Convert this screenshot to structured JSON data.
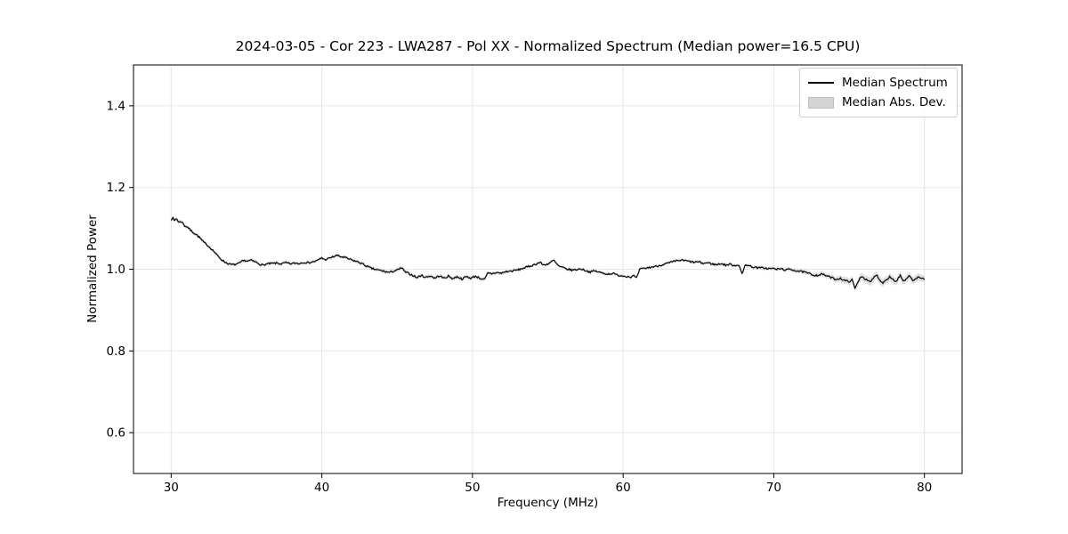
{
  "chart_data": {
    "type": "line",
    "title": "2024-03-05 - Cor 223 - LWA287 - Pol XX - Normalized Spectrum (Median power=16.5 CPU)",
    "xlabel": "Frequency (MHz)",
    "ylabel": "Normalized Power",
    "xlim": [
      27.5,
      82.5
    ],
    "ylim": [
      0.5,
      1.5
    ],
    "xticks": [
      "30",
      "40",
      "50",
      "60",
      "70",
      "80"
    ],
    "yticks": [
      "0.6",
      "0.8",
      "1.0",
      "1.2",
      "1.4"
    ],
    "grid": true,
    "legend": {
      "position": "upper right",
      "entries": [
        {
          "label": "Median Spectrum",
          "type": "line",
          "color": "#000000"
        },
        {
          "label": "Median Abs. Dev.",
          "type": "patch",
          "color": "#d4d4d4"
        }
      ]
    },
    "colors": {
      "line": "#000000",
      "band": "#bbbbbb",
      "grid": "#e6e6e6",
      "spine": "#000000",
      "background": "#ffffff"
    },
    "noise_amplitude": 0.0022,
    "series": [
      {
        "name": "Median Spectrum",
        "style": "line",
        "color": "#000000",
        "points": [
          [
            30.0,
            1.122
          ],
          [
            30.1,
            1.127
          ],
          [
            30.2,
            1.118
          ],
          [
            30.35,
            1.125
          ],
          [
            30.5,
            1.115
          ],
          [
            30.7,
            1.117
          ],
          [
            30.9,
            1.106
          ],
          [
            31.1,
            1.103
          ],
          [
            31.3,
            1.095
          ],
          [
            31.5,
            1.089
          ],
          [
            31.7,
            1.084
          ],
          [
            31.9,
            1.077
          ],
          [
            32.1,
            1.068
          ],
          [
            32.3,
            1.062
          ],
          [
            32.5,
            1.056
          ],
          [
            32.7,
            1.049
          ],
          [
            32.9,
            1.041
          ],
          [
            33.1,
            1.032
          ],
          [
            33.3,
            1.025
          ],
          [
            33.5,
            1.019
          ],
          [
            33.7,
            1.015
          ],
          [
            33.9,
            1.012
          ],
          [
            34.1,
            1.011
          ],
          [
            34.3,
            1.012
          ],
          [
            34.5,
            1.014
          ],
          [
            34.7,
            1.019
          ],
          [
            34.9,
            1.021
          ],
          [
            35.1,
            1.02
          ],
          [
            35.3,
            1.022
          ],
          [
            35.5,
            1.019
          ],
          [
            35.7,
            1.016
          ],
          [
            35.9,
            1.012
          ],
          [
            36.1,
            1.01
          ],
          [
            36.4,
            1.013
          ],
          [
            36.7,
            1.014
          ],
          [
            37.0,
            1.015
          ],
          [
            37.3,
            1.013
          ],
          [
            37.6,
            1.016
          ],
          [
            37.9,
            1.013
          ],
          [
            38.2,
            1.015
          ],
          [
            38.5,
            1.014
          ],
          [
            38.8,
            1.017
          ],
          [
            39.1,
            1.016
          ],
          [
            39.4,
            1.018
          ],
          [
            39.7,
            1.021
          ],
          [
            40.0,
            1.028
          ],
          [
            40.2,
            1.023
          ],
          [
            40.5,
            1.027
          ],
          [
            40.8,
            1.031
          ],
          [
            41.0,
            1.034
          ],
          [
            41.2,
            1.031
          ],
          [
            41.5,
            1.029
          ],
          [
            41.8,
            1.025
          ],
          [
            42.1,
            1.021
          ],
          [
            42.4,
            1.018
          ],
          [
            42.7,
            1.013
          ],
          [
            43.0,
            1.007
          ],
          [
            43.3,
            1.002
          ],
          [
            43.6,
            0.999
          ],
          [
            43.9,
            0.997
          ],
          [
            44.2,
            0.994
          ],
          [
            44.5,
            0.992
          ],
          [
            44.8,
            0.996
          ],
          [
            45.1,
            0.999
          ],
          [
            45.3,
            1.004
          ],
          [
            45.5,
            0.994
          ],
          [
            45.8,
            0.989
          ],
          [
            46.1,
            0.984
          ],
          [
            46.3,
            0.979
          ],
          [
            46.6,
            0.985
          ],
          [
            46.9,
            0.98
          ],
          [
            47.2,
            0.984
          ],
          [
            47.5,
            0.978
          ],
          [
            47.8,
            0.984
          ],
          [
            48.1,
            0.978
          ],
          [
            48.4,
            0.983
          ],
          [
            48.7,
            0.977
          ],
          [
            49.0,
            0.982
          ],
          [
            49.3,
            0.976
          ],
          [
            49.6,
            0.982
          ],
          [
            49.9,
            0.978
          ],
          [
            50.2,
            0.983
          ],
          [
            50.5,
            0.978
          ],
          [
            50.8,
            0.974
          ],
          [
            51.0,
            0.99
          ],
          [
            51.3,
            0.989
          ],
          [
            51.6,
            0.992
          ],
          [
            51.9,
            0.99
          ],
          [
            52.2,
            0.994
          ],
          [
            52.5,
            0.995
          ],
          [
            52.8,
            0.997
          ],
          [
            53.1,
            0.999
          ],
          [
            53.4,
            1.003
          ],
          [
            53.7,
            1.006
          ],
          [
            54.0,
            1.01
          ],
          [
            54.3,
            1.014
          ],
          [
            54.5,
            1.017
          ],
          [
            54.7,
            1.01
          ],
          [
            55.0,
            1.013
          ],
          [
            55.2,
            1.017
          ],
          [
            55.4,
            1.022
          ],
          [
            55.6,
            1.012
          ],
          [
            55.8,
            1.006
          ],
          [
            56.0,
            1.004
          ],
          [
            56.3,
            1.0
          ],
          [
            56.6,
            0.998
          ],
          [
            56.9,
            0.999
          ],
          [
            57.2,
            1.001
          ],
          [
            57.5,
            0.997
          ],
          [
            57.8,
            0.993
          ],
          [
            58.1,
            0.996
          ],
          [
            58.4,
            0.993
          ],
          [
            58.7,
            0.99
          ],
          [
            59.0,
            0.988
          ],
          [
            59.3,
            0.99
          ],
          [
            59.6,
            0.986
          ],
          [
            59.9,
            0.984
          ],
          [
            60.2,
            0.983
          ],
          [
            60.5,
            0.981
          ],
          [
            60.7,
            0.984
          ],
          [
            60.9,
            0.978
          ],
          [
            61.1,
            1.0
          ],
          [
            61.4,
            1.002
          ],
          [
            61.7,
            1.004
          ],
          [
            62.0,
            1.006
          ],
          [
            62.3,
            1.008
          ],
          [
            62.6,
            1.011
          ],
          [
            62.9,
            1.014
          ],
          [
            63.2,
            1.017
          ],
          [
            63.5,
            1.02
          ],
          [
            63.8,
            1.022
          ],
          [
            64.1,
            1.021
          ],
          [
            64.4,
            1.019
          ],
          [
            64.7,
            1.017
          ],
          [
            65.0,
            1.018
          ],
          [
            65.3,
            1.014
          ],
          [
            65.6,
            1.016
          ],
          [
            65.9,
            1.013
          ],
          [
            66.2,
            1.011
          ],
          [
            66.5,
            1.014
          ],
          [
            66.8,
            1.01
          ],
          [
            67.1,
            1.012
          ],
          [
            67.4,
            1.009
          ],
          [
            67.7,
            1.011
          ],
          [
            67.9,
            0.986
          ],
          [
            68.1,
            1.012
          ],
          [
            68.4,
            1.008
          ],
          [
            68.7,
            1.005
          ],
          [
            69.0,
            1.003
          ],
          [
            69.3,
            1.004
          ],
          [
            69.6,
            1.001
          ],
          [
            69.9,
            1.002
          ],
          [
            70.2,
            1.0
          ],
          [
            70.5,
            1.001
          ],
          [
            70.8,
            0.998
          ],
          [
            71.1,
            1.0
          ],
          [
            71.4,
            0.997
          ],
          [
            71.7,
            0.995
          ],
          [
            72.0,
            0.993
          ],
          [
            72.3,
            0.99
          ],
          [
            72.6,
            0.986
          ],
          [
            72.9,
            0.985
          ],
          [
            73.2,
            0.988
          ],
          [
            73.5,
            0.984
          ],
          [
            73.8,
            0.98
          ],
          [
            74.1,
            0.975
          ],
          [
            74.4,
            0.978
          ],
          [
            74.7,
            0.972
          ],
          [
            75.0,
            0.97
          ],
          [
            75.2,
            0.974
          ],
          [
            75.4,
            0.952
          ],
          [
            75.6,
            0.97
          ],
          [
            75.8,
            0.984
          ],
          [
            76.1,
            0.975
          ],
          [
            76.4,
            0.968
          ],
          [
            76.8,
            0.987
          ],
          [
            77.2,
            0.966
          ],
          [
            77.7,
            0.982
          ],
          [
            78.1,
            0.969
          ],
          [
            78.4,
            0.985
          ],
          [
            78.6,
            0.969
          ],
          [
            79.0,
            0.983
          ],
          [
            79.3,
            0.971
          ],
          [
            79.6,
            0.982
          ],
          [
            80.0,
            0.974
          ]
        ]
      },
      {
        "name": "Median Abs. Dev.",
        "style": "band",
        "color": "#bbbbbb",
        "halfwidth_points": [
          [
            30,
            0.005
          ],
          [
            32,
            0.0045
          ],
          [
            34,
            0.004
          ],
          [
            40,
            0.004
          ],
          [
            44,
            0.0045
          ],
          [
            46,
            0.005
          ],
          [
            50,
            0.005
          ],
          [
            53,
            0.004
          ],
          [
            58,
            0.0035
          ],
          [
            62,
            0.0035
          ],
          [
            66,
            0.004
          ],
          [
            70,
            0.0045
          ],
          [
            72,
            0.005
          ],
          [
            73.5,
            0.006
          ],
          [
            74.5,
            0.008
          ],
          [
            75.5,
            0.009
          ],
          [
            76.5,
            0.01
          ],
          [
            78,
            0.009
          ],
          [
            80,
            0.009
          ]
        ]
      }
    ]
  }
}
